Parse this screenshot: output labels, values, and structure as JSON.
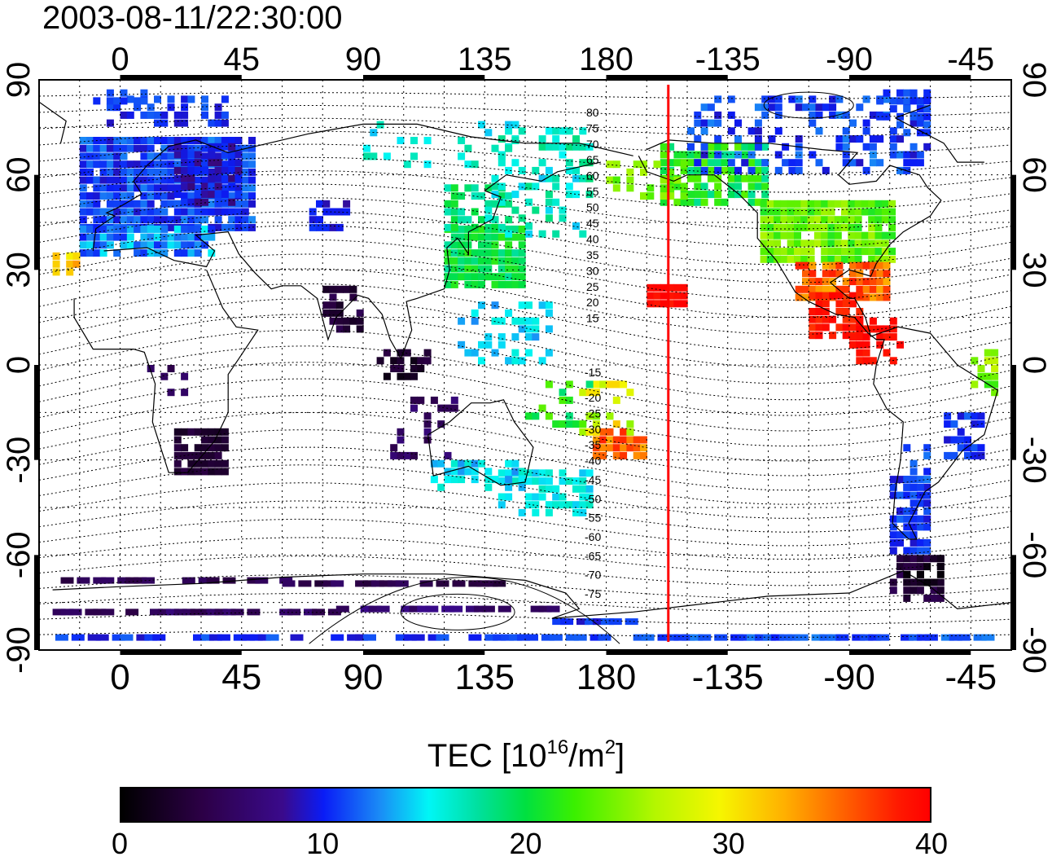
{
  "timestamp": "2003-08-11/22:30:00",
  "map": {
    "top_axis_labels": [
      "0",
      "45",
      "90",
      "135",
      "180",
      "-135",
      "-90",
      "-45"
    ],
    "bottom_axis_labels": [
      "0",
      "45",
      "90",
      "135",
      "180",
      "-135",
      "-90",
      "-45"
    ],
    "left_axis_labels": [
      "90",
      "60",
      "30",
      "0",
      "-30",
      "-60",
      "-90"
    ],
    "right_axis_labels": [
      "90",
      "60",
      "30",
      "0",
      "-30",
      "-60",
      "-90"
    ],
    "longitude_ticks": [
      0,
      45,
      90,
      135,
      180,
      -135,
      -90,
      -45
    ],
    "latitude_ticks": [
      90,
      60,
      30,
      0,
      -30,
      -60,
      -90
    ],
    "contour_labels_north": [
      "80",
      "75",
      "70",
      "65",
      "60",
      "55",
      "50",
      "45",
      "40",
      "35",
      "30",
      "25",
      "20",
      "15"
    ],
    "contour_labels_south": [
      "-15",
      "-20",
      "-25",
      "-30",
      "-35",
      "-40",
      "-45",
      "-50",
      "-55",
      "-60",
      "-65",
      "-70",
      "-75"
    ],
    "marker_line_color": "#ff0000",
    "marker_longitude": -157
  },
  "colorbar": {
    "title_prefix": "TEC  [10",
    "title_exp1": "16",
    "title_mid": "/m",
    "title_exp2": "2",
    "title_suffix": "]",
    "labels": [
      "0",
      "10",
      "20",
      "30",
      "40"
    ],
    "min": 0,
    "max": 40,
    "colors": [
      "#000000",
      "#3a0a8c",
      "#0a1cf6",
      "#00f6f6",
      "#00e040",
      "#b4f600",
      "#f6f600",
      "#ff5a00",
      "#ff0000"
    ]
  }
}
